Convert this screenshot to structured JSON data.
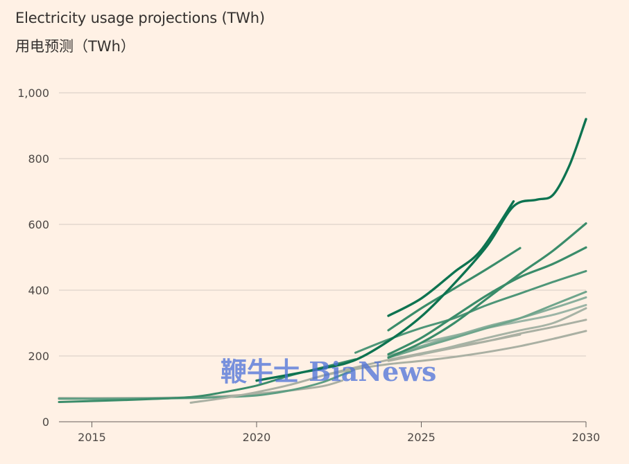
{
  "chart_data": {
    "type": "line",
    "title": "Electricity usage projections (TWh)",
    "subtitle": "用电预测（TWh）",
    "xlabel": "",
    "ylabel": "",
    "xlim": [
      2014,
      2030
    ],
    "ylim": [
      0,
      1000
    ],
    "y_ticks": [
      {
        "value": 0,
        "label": "0"
      },
      {
        "value": 200,
        "label": "200"
      },
      {
        "value": 400,
        "label": "400"
      },
      {
        "value": 600,
        "label": "600"
      },
      {
        "value": 800,
        "label": "800"
      },
      {
        "value": 1000,
        "label": "1,000"
      }
    ],
    "x_ticks": [
      {
        "value": 2015,
        "label": "2015"
      },
      {
        "value": 2020,
        "label": "2020"
      },
      {
        "value": 2025,
        "label": "2025"
      },
      {
        "value": 2030,
        "label": "2030"
      }
    ],
    "grid": true,
    "colors": {
      "background": "#fff1e5",
      "grid": "#d6cbc2",
      "dark_green": "#0d7350",
      "mid_green": "#3a8c6a",
      "light_green": "#5e9e83",
      "grey_green": "#8aaf9c",
      "grey": "#aab0a3"
    },
    "series": [
      {
        "name": "projection-1",
        "color": "#0d7350",
        "width": 3.4,
        "x": [
          2020,
          2022,
          2023,
          2024,
          2025,
          2026,
          2027,
          2027.8,
          2028.5,
          2029,
          2029.5,
          2030
        ],
        "y": [
          125,
          162,
          188,
          245,
          320,
          420,
          535,
          655,
          675,
          690,
          780,
          920
        ]
      },
      {
        "name": "projection-2",
        "color": "#0d7350",
        "width": 3.4,
        "x": [
          2024,
          2025,
          2026,
          2026.8,
          2027.8
        ],
        "y": [
          322,
          375,
          455,
          520,
          670
        ]
      },
      {
        "name": "projection-3",
        "color": "#3a8c6a",
        "width": 3.2,
        "x": [
          2024,
          2025,
          2026,
          2027,
          2028
        ],
        "y": [
          278,
          345,
          405,
          465,
          528
        ]
      },
      {
        "name": "projection-4",
        "color": "#3a8c6a",
        "width": 3.2,
        "x": [
          2024,
          2025,
          2026,
          2027,
          2028,
          2029,
          2030
        ],
        "y": [
          195,
          240,
          300,
          375,
          450,
          520,
          603
        ]
      },
      {
        "name": "projection-5",
        "color": "#3a8c6a",
        "width": 3.2,
        "x": [
          2024,
          2025,
          2026,
          2027,
          2028,
          2029,
          2030
        ],
        "y": [
          205,
          255,
          320,
          385,
          440,
          480,
          530
        ]
      },
      {
        "name": "projection-6",
        "color": "#4e9678",
        "width": 3.0,
        "x": [
          2023,
          2024,
          2025,
          2026,
          2027,
          2028,
          2029,
          2030
        ],
        "y": [
          210,
          250,
          285,
          315,
          355,
          390,
          425,
          458
        ]
      },
      {
        "name": "projection-7",
        "color": "#6fa58c",
        "width": 3.0,
        "x": [
          2024,
          2025,
          2026,
          2027,
          2028,
          2029,
          2030
        ],
        "y": [
          195,
          225,
          255,
          285,
          315,
          355,
          395
        ]
      },
      {
        "name": "projection-8",
        "color": "#8aaf9c",
        "width": 3.0,
        "x": [
          2024,
          2025,
          2026,
          2027,
          2028,
          2029,
          2030
        ],
        "y": [
          200,
          230,
          260,
          290,
          315,
          345,
          378
        ]
      },
      {
        "name": "projection-9",
        "color": "#9cb5a6",
        "width": 3.0,
        "x": [
          2025,
          2026,
          2027,
          2028,
          2029,
          2030
        ],
        "y": [
          240,
          262,
          285,
          305,
          325,
          355
        ]
      },
      {
        "name": "projection-10",
        "color": "#a7b3a5",
        "width": 3.0,
        "x": [
          2025,
          2026,
          2027,
          2028,
          2029,
          2030
        ],
        "y": [
          205,
          230,
          255,
          278,
          300,
          345
        ]
      },
      {
        "name": "projection-11",
        "color": "#aab0a3",
        "width": 3.0,
        "x": [
          2024,
          2025,
          2026,
          2027,
          2028,
          2029,
          2030
        ],
        "y": [
          185,
          205,
          225,
          245,
          268,
          288,
          310
        ]
      },
      {
        "name": "projection-12",
        "color": "#aab0a3",
        "width": 3.0,
        "x": [
          2022,
          2023,
          2024,
          2025,
          2026,
          2027,
          2028,
          2029,
          2030
        ],
        "y": [
          140,
          160,
          175,
          185,
          197,
          212,
          230,
          252,
          276
        ]
      },
      {
        "name": "projection-13",
        "color": "#aab0a3",
        "width": 3.0,
        "x": [
          2018,
          2019,
          2020,
          2021,
          2022,
          2023,
          2024,
          2025,
          2026,
          2027,
          2028
        ],
        "y": [
          58,
          72,
          90,
          112,
          140,
          165,
          188,
          208,
          228,
          245,
          265
        ]
      },
      {
        "name": "projection-14",
        "color": "#3a8c6a",
        "width": 3.0,
        "x": [
          2014,
          2016,
          2018,
          2019,
          2020,
          2021,
          2022,
          2023
        ],
        "y": [
          60,
          66,
          75,
          90,
          110,
          140,
          165,
          190
        ]
      },
      {
        "name": "projection-15",
        "color": "#5e9e83",
        "width": 3.0,
        "x": [
          2014,
          2016,
          2018,
          2019,
          2020,
          2021,
          2022,
          2023
        ],
        "y": [
          70,
          70,
          72,
          75,
          80,
          95,
          120,
          160
        ]
      },
      {
        "name": "projection-16",
        "color": "#aab0a3",
        "width": 3.0,
        "x": [
          2014,
          2016,
          2018,
          2019,
          2020,
          2021,
          2022,
          2022.6
        ],
        "y": [
          72,
          72,
          74,
          78,
          85,
          95,
          108,
          125
        ]
      }
    ],
    "watermark": "鞭牛士 BiaNews"
  }
}
